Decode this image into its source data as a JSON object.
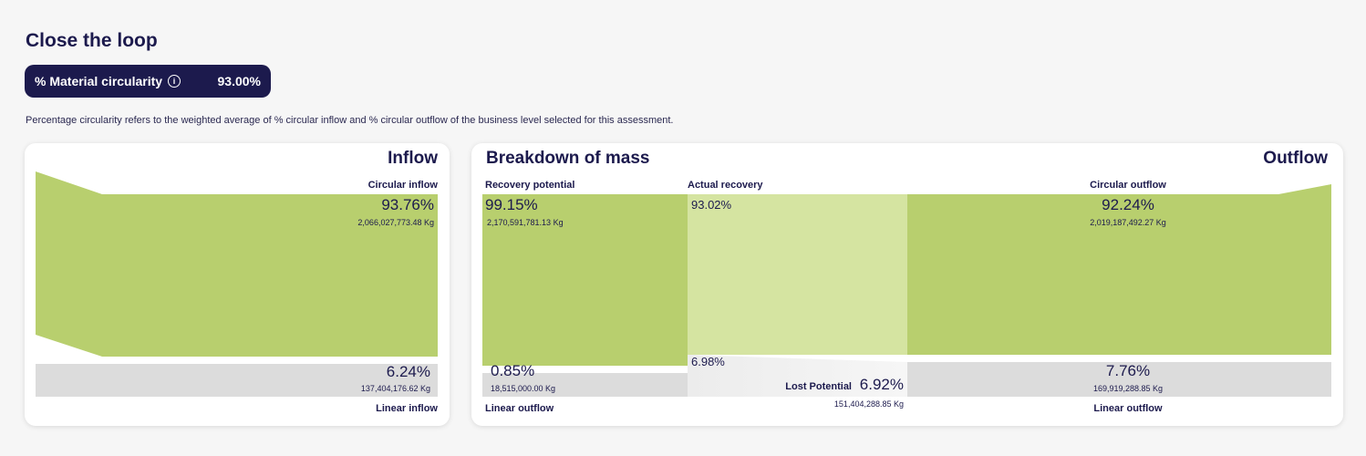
{
  "page": {
    "title": "Close the loop",
    "metric": {
      "label": "% Material circularity",
      "value": "93.00%",
      "info_icon": "info-icon"
    },
    "description": "Percentage circularity refers to the weighted average of % circular inflow and % circular outflow of the business level selected for this assessment."
  },
  "inflow": {
    "title": "Inflow",
    "circular": {
      "label": "Circular inflow",
      "percent": "93.76%",
      "mass": "2,066,027,773.48 Kg"
    },
    "linear": {
      "label": "Linear inflow",
      "percent": "6.24%",
      "mass": "137,404,176.62 Kg"
    }
  },
  "mass": {
    "title": "Breakdown of mass",
    "outflow_title": "Outflow",
    "recovery_potential": {
      "label": "Recovery potential",
      "percent": "99.15%",
      "mass": "2,170,591,781.13 Kg"
    },
    "actual_recovery": {
      "label": "Actual recovery",
      "percent": "93.02%",
      "remainder_percent": "6.98%"
    },
    "circular_outflow": {
      "label": "Circular outflow",
      "percent": "92.24%",
      "mass": "2,019,187,492.27 Kg"
    },
    "left_linear": {
      "label": "Linear outflow",
      "percent": "0.85%",
      "mass": "18,515,000.00 Kg"
    },
    "lost_potential": {
      "label": "Lost Potential",
      "percent": "6.92%",
      "mass": "151,404,288.85 Kg"
    },
    "right_linear": {
      "label": "Linear outflow",
      "percent": "7.76%",
      "mass": "169,919,288.85 Kg"
    }
  },
  "colors": {
    "green": "#b8cf6e",
    "light_green": "#d5e4a1",
    "grey": "#dcdcdc",
    "navy": "#1c1a4d"
  }
}
